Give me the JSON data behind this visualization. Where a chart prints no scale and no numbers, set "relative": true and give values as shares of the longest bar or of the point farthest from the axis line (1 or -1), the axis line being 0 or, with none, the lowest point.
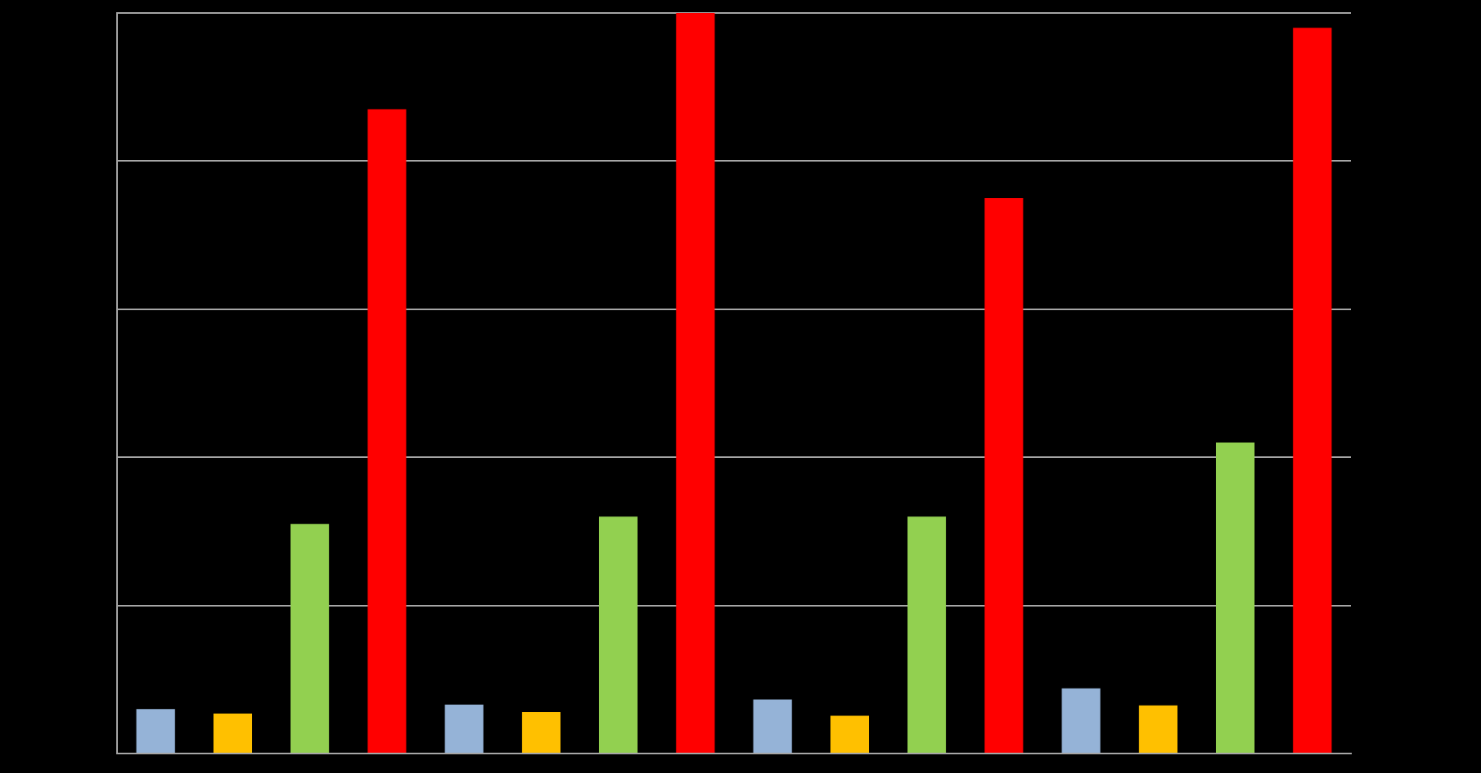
{
  "chart_data": {
    "type": "bar",
    "relative": true,
    "grid": "y",
    "categories": [
      null,
      null,
      null,
      null
    ],
    "series": [
      {
        "color": "#95b3d7",
        "values": [
          0.06,
          0.066,
          0.073,
          0.088
        ]
      },
      {
        "color": "#ffc000",
        "values": [
          0.054,
          0.056,
          0.051,
          0.065
        ]
      },
      {
        "color": "#92d050",
        "values": [
          0.31,
          0.32,
          0.32,
          0.42
        ]
      },
      {
        "color": "#ff0000",
        "values": [
          0.87,
          1,
          0.75,
          0.98
        ]
      }
    ]
  }
}
